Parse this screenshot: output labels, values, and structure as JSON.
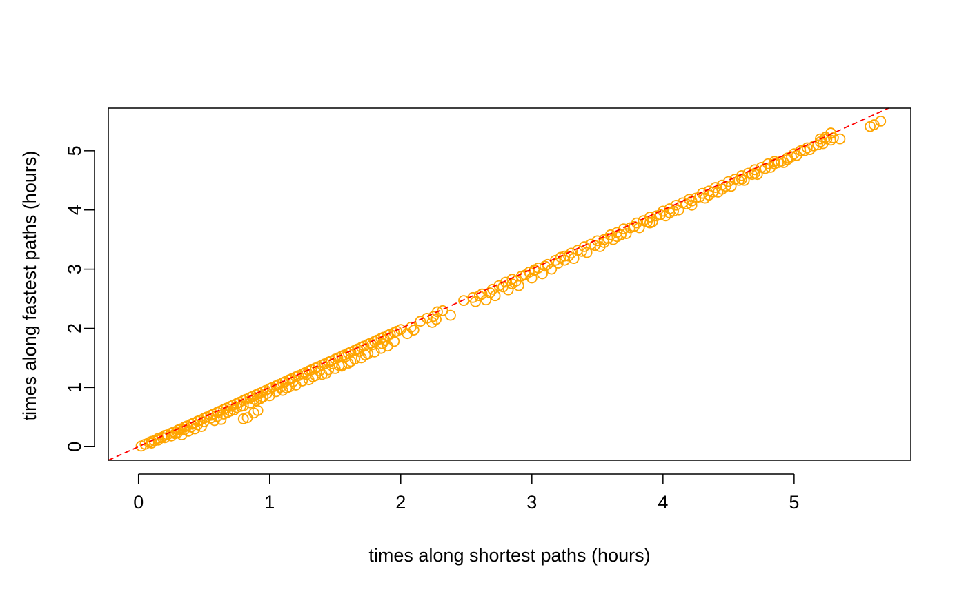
{
  "chart_data": {
    "type": "scatter",
    "title": "",
    "xlabel": "times along shortest paths (hours)",
    "ylabel": "times along fastest paths (hours)",
    "xlim": [
      -0.23,
      5.89
    ],
    "ylim": [
      -0.23,
      5.72
    ],
    "x_ticks": [
      0,
      1,
      2,
      3,
      4,
      5
    ],
    "y_ticks": [
      0,
      1,
      2,
      3,
      4,
      5
    ],
    "x_tick_labels": [
      "0",
      "1",
      "2",
      "3",
      "4",
      "5"
    ],
    "y_tick_labels": [
      "0",
      "1",
      "2",
      "3",
      "4",
      "5"
    ],
    "grid": false,
    "legend": "none",
    "marker": "open-circle",
    "point_color": "#FFA500",
    "reference_line": {
      "style": "dashed",
      "color": "#FF0000",
      "slope": 1,
      "intercept": 0
    },
    "points": [
      [
        0.02,
        0.01
      ],
      [
        0.05,
        0.04
      ],
      [
        0.08,
        0.07
      ],
      [
        0.1,
        0.09
      ],
      [
        0.12,
        0.1
      ],
      [
        0.15,
        0.14
      ],
      [
        0.18,
        0.16
      ],
      [
        0.2,
        0.19
      ],
      [
        0.22,
        0.2
      ],
      [
        0.25,
        0.23
      ],
      [
        0.27,
        0.25
      ],
      [
        0.3,
        0.28
      ],
      [
        0.32,
        0.3
      ],
      [
        0.35,
        0.33
      ],
      [
        0.37,
        0.35
      ],
      [
        0.4,
        0.38
      ],
      [
        0.42,
        0.4
      ],
      [
        0.45,
        0.43
      ],
      [
        0.47,
        0.45
      ],
      [
        0.5,
        0.48
      ],
      [
        0.52,
        0.5
      ],
      [
        0.55,
        0.53
      ],
      [
        0.57,
        0.55
      ],
      [
        0.6,
        0.58
      ],
      [
        0.62,
        0.6
      ],
      [
        0.65,
        0.63
      ],
      [
        0.67,
        0.65
      ],
      [
        0.7,
        0.68
      ],
      [
        0.72,
        0.7
      ],
      [
        0.75,
        0.73
      ],
      [
        0.77,
        0.75
      ],
      [
        0.8,
        0.78
      ],
      [
        0.82,
        0.8
      ],
      [
        0.85,
        0.83
      ],
      [
        0.87,
        0.85
      ],
      [
        0.9,
        0.88
      ],
      [
        0.92,
        0.9
      ],
      [
        0.95,
        0.93
      ],
      [
        0.97,
        0.95
      ],
      [
        1.0,
        0.98
      ],
      [
        1.02,
        1.0
      ],
      [
        1.05,
        1.03
      ],
      [
        1.07,
        1.05
      ],
      [
        1.1,
        1.08
      ],
      [
        1.12,
        1.1
      ],
      [
        1.15,
        1.13
      ],
      [
        1.17,
        1.15
      ],
      [
        1.2,
        1.18
      ],
      [
        1.22,
        1.2
      ],
      [
        1.25,
        1.23
      ],
      [
        1.27,
        1.25
      ],
      [
        1.3,
        1.28
      ],
      [
        1.32,
        1.3
      ],
      [
        1.35,
        1.33
      ],
      [
        1.37,
        1.35
      ],
      [
        1.4,
        1.38
      ],
      [
        1.42,
        1.4
      ],
      [
        1.45,
        1.43
      ],
      [
        1.47,
        1.45
      ],
      [
        1.5,
        1.48
      ],
      [
        1.52,
        1.5
      ],
      [
        1.55,
        1.53
      ],
      [
        1.57,
        1.55
      ],
      [
        1.6,
        1.58
      ],
      [
        1.62,
        1.6
      ],
      [
        1.65,
        1.63
      ],
      [
        1.67,
        1.65
      ],
      [
        1.7,
        1.68
      ],
      [
        1.72,
        1.7
      ],
      [
        1.75,
        1.73
      ],
      [
        1.77,
        1.75
      ],
      [
        1.8,
        1.78
      ],
      [
        1.82,
        1.8
      ],
      [
        1.85,
        1.83
      ],
      [
        1.87,
        1.85
      ],
      [
        1.9,
        1.88
      ],
      [
        1.92,
        1.9
      ],
      [
        1.95,
        1.93
      ],
      [
        1.97,
        1.95
      ],
      [
        2.0,
        1.98
      ],
      [
        0.1,
        0.06
      ],
      [
        0.2,
        0.15
      ],
      [
        0.3,
        0.24
      ],
      [
        0.4,
        0.33
      ],
      [
        0.5,
        0.42
      ],
      [
        0.6,
        0.51
      ],
      [
        0.7,
        0.6
      ],
      [
        0.8,
        0.69
      ],
      [
        0.9,
        0.78
      ],
      [
        1.0,
        0.86
      ],
      [
        1.1,
        0.95
      ],
      [
        1.2,
        1.04
      ],
      [
        1.3,
        1.13
      ],
      [
        1.4,
        1.22
      ],
      [
        1.5,
        1.32
      ],
      [
        1.6,
        1.41
      ],
      [
        1.7,
        1.5
      ],
      [
        1.8,
        1.6
      ],
      [
        1.9,
        1.7
      ],
      [
        0.15,
        0.11
      ],
      [
        0.35,
        0.29
      ],
      [
        0.55,
        0.48
      ],
      [
        0.75,
        0.66
      ],
      [
        0.95,
        0.84
      ],
      [
        1.15,
        1.01
      ],
      [
        1.35,
        1.2
      ],
      [
        1.55,
        1.38
      ],
      [
        1.75,
        1.57
      ],
      [
        1.95,
        1.78
      ],
      [
        0.25,
        0.18
      ],
      [
        0.45,
        0.37
      ],
      [
        0.65,
        0.55
      ],
      [
        0.85,
        0.74
      ],
      [
        1.05,
        0.93
      ],
      [
        1.25,
        1.11
      ],
      [
        1.45,
        1.3
      ],
      [
        1.65,
        1.48
      ],
      [
        1.85,
        1.66
      ],
      [
        0.28,
        0.22
      ],
      [
        0.38,
        0.26
      ],
      [
        0.48,
        0.34
      ],
      [
        0.58,
        0.44
      ],
      [
        0.68,
        0.58
      ],
      [
        0.78,
        0.68
      ],
      [
        0.88,
        0.8
      ],
      [
        0.98,
        0.9
      ],
      [
        1.08,
        1.0
      ],
      [
        1.18,
        1.1
      ],
      [
        1.28,
        1.22
      ],
      [
        1.38,
        1.28
      ],
      [
        1.48,
        1.4
      ],
      [
        1.58,
        1.52
      ],
      [
        1.68,
        1.61
      ],
      [
        1.78,
        1.72
      ],
      [
        1.88,
        1.8
      ],
      [
        0.33,
        0.2
      ],
      [
        0.43,
        0.3
      ],
      [
        0.63,
        0.46
      ],
      [
        0.73,
        0.62
      ],
      [
        0.93,
        0.81
      ],
      [
        1.13,
        0.99
      ],
      [
        1.33,
        1.18
      ],
      [
        1.53,
        1.37
      ],
      [
        1.73,
        1.55
      ],
      [
        0.8,
        0.47
      ],
      [
        0.83,
        0.49
      ],
      [
        0.88,
        0.57
      ],
      [
        0.91,
        0.61
      ],
      [
        1.43,
        1.24
      ],
      [
        1.55,
        1.36
      ],
      [
        1.62,
        1.44
      ],
      [
        1.86,
        1.74
      ],
      [
        2.05,
        1.91
      ],
      [
        2.1,
        1.97
      ],
      [
        2.08,
        2.02
      ],
      [
        2.15,
        2.12
      ],
      [
        2.2,
        2.17
      ],
      [
        2.25,
        2.2
      ],
      [
        2.28,
        2.28
      ],
      [
        2.32,
        2.3
      ],
      [
        2.24,
        2.1
      ],
      [
        2.27,
        2.15
      ],
      [
        2.38,
        2.22
      ],
      [
        2.48,
        2.47
      ],
      [
        2.55,
        2.52
      ],
      [
        2.57,
        2.45
      ],
      [
        2.62,
        2.58
      ],
      [
        2.65,
        2.48
      ],
      [
        2.68,
        2.6
      ],
      [
        2.7,
        2.66
      ],
      [
        2.72,
        2.55
      ],
      [
        2.75,
        2.72
      ],
      [
        2.78,
        2.7
      ],
      [
        2.8,
        2.78
      ],
      [
        2.82,
        2.65
      ],
      [
        2.85,
        2.83
      ],
      [
        2.88,
        2.8
      ],
      [
        2.9,
        2.72
      ],
      [
        2.92,
        2.88
      ],
      [
        2.95,
        2.9
      ],
      [
        2.98,
        2.95
      ],
      [
        3.0,
        2.85
      ],
      [
        3.02,
        2.99
      ],
      [
        3.05,
        3.02
      ],
      [
        3.08,
        2.92
      ],
      [
        3.1,
        3.05
      ],
      [
        3.12,
        3.08
      ],
      [
        3.15,
        3.0
      ],
      [
        3.18,
        3.15
      ],
      [
        3.2,
        3.1
      ],
      [
        3.22,
        3.2
      ],
      [
        3.25,
        3.15
      ],
      [
        3.28,
        3.22
      ],
      [
        3.3,
        3.27
      ],
      [
        3.32,
        3.18
      ],
      [
        3.35,
        3.32
      ],
      [
        3.38,
        3.3
      ],
      [
        3.4,
        3.38
      ],
      [
        3.42,
        3.28
      ],
      [
        3.45,
        3.42
      ],
      [
        3.48,
        3.4
      ],
      [
        3.5,
        3.48
      ],
      [
        3.52,
        3.38
      ],
      [
        3.55,
        3.5
      ],
      [
        3.58,
        3.52
      ],
      [
        3.6,
        3.58
      ],
      [
        3.62,
        3.5
      ],
      [
        3.65,
        3.62
      ],
      [
        3.68,
        3.58
      ],
      [
        3.7,
        3.68
      ],
      [
        3.72,
        3.6
      ],
      [
        3.75,
        3.7
      ],
      [
        3.78,
        3.72
      ],
      [
        3.8,
        3.78
      ],
      [
        3.82,
        3.7
      ],
      [
        3.85,
        3.82
      ],
      [
        3.88,
        3.8
      ],
      [
        3.9,
        3.88
      ],
      [
        3.92,
        3.8
      ],
      [
        3.95,
        3.9
      ],
      [
        3.98,
        3.92
      ],
      [
        4.0,
        3.98
      ],
      [
        4.02,
        3.9
      ],
      [
        4.05,
        4.02
      ],
      [
        4.08,
        3.98
      ],
      [
        4.1,
        4.08
      ],
      [
        4.12,
        4.0
      ],
      [
        4.15,
        4.12
      ],
      [
        4.18,
        4.1
      ],
      [
        4.2,
        4.18
      ],
      [
        4.22,
        4.08
      ],
      [
        4.25,
        4.2
      ],
      [
        4.28,
        4.22
      ],
      [
        4.3,
        4.28
      ],
      [
        4.32,
        4.2
      ],
      [
        4.35,
        4.32
      ],
      [
        4.38,
        4.3
      ],
      [
        4.4,
        4.38
      ],
      [
        4.42,
        4.3
      ],
      [
        4.45,
        4.42
      ],
      [
        4.48,
        4.4
      ],
      [
        4.5,
        4.48
      ],
      [
        4.52,
        4.4
      ],
      [
        4.55,
        4.52
      ],
      [
        4.58,
        4.5
      ],
      [
        4.6,
        4.58
      ],
      [
        4.62,
        4.5
      ],
      [
        4.65,
        4.62
      ],
      [
        4.68,
        4.6
      ],
      [
        4.7,
        4.68
      ],
      [
        4.72,
        4.6
      ],
      [
        4.75,
        4.72
      ],
      [
        4.78,
        4.7
      ],
      [
        4.8,
        4.78
      ],
      [
        4.82,
        4.72
      ],
      [
        4.85,
        4.82
      ],
      [
        4.88,
        4.8
      ],
      [
        4.9,
        4.82
      ],
      [
        4.92,
        4.8
      ],
      [
        4.95,
        4.88
      ],
      [
        4.98,
        4.9
      ],
      [
        5.0,
        4.95
      ],
      [
        5.02,
        4.92
      ],
      [
        5.05,
        5.0
      ],
      [
        5.08,
        5.0
      ],
      [
        5.1,
        5.05
      ],
      [
        5.12,
        5.02
      ],
      [
        5.15,
        5.08
      ],
      [
        5.18,
        5.1
      ],
      [
        5.2,
        5.15
      ],
      [
        5.22,
        5.12
      ],
      [
        5.25,
        5.2
      ],
      [
        5.28,
        5.18
      ],
      [
        5.3,
        5.22
      ],
      [
        5.35,
        5.2
      ],
      [
        5.2,
        5.2
      ],
      [
        5.24,
        5.23
      ],
      [
        5.28,
        5.3
      ],
      [
        5.58,
        5.41
      ],
      [
        5.61,
        5.44
      ],
      [
        5.66,
        5.5
      ],
      [
        3.02,
        2.98
      ],
      [
        3.55,
        3.45
      ],
      [
        3.9,
        3.78
      ],
      [
        4.22,
        4.15
      ],
      [
        4.45,
        4.35
      ],
      [
        4.7,
        4.62
      ],
      [
        4.95,
        4.85
      ],
      [
        2.6,
        2.55
      ],
      [
        2.85,
        2.75
      ],
      [
        3.25,
        3.22
      ],
      [
        3.65,
        3.55
      ],
      [
        4.05,
        3.95
      ],
      [
        4.35,
        4.25
      ],
      [
        4.6,
        4.52
      ],
      [
        4.85,
        4.78
      ]
    ]
  }
}
